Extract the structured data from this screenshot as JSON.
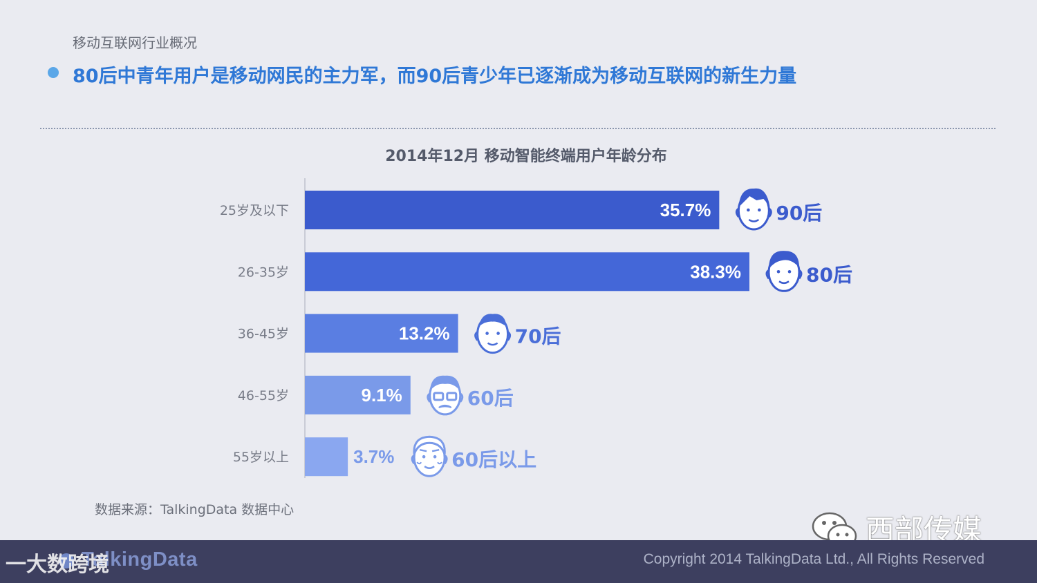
{
  "section_title": "移动互联网行业概况",
  "headline": "80后中青年用户是移动网民的主力军，而90后青少年已逐渐成为移动互联网的新生力量",
  "chart_data": {
    "type": "bar",
    "orientation": "horizontal",
    "title": "2014年12月 移动智能终端用户年龄分布",
    "categories": [
      "25岁及以下",
      "26-35岁",
      "36-45岁",
      "46-55岁",
      "55岁以上"
    ],
    "values": [
      35.7,
      38.3,
      13.2,
      9.1,
      3.7
    ],
    "value_labels": [
      "35.7%",
      "38.3%",
      "13.2%",
      "9.1%",
      "3.7%"
    ],
    "generation_labels": [
      "90后",
      "80后",
      "70后",
      "60后",
      "60后以上"
    ],
    "icons": [
      "young-man-face-icon",
      "man-face-icon",
      "middle-aged-man-face-icon",
      "glasses-mustache-man-face-icon",
      "elderly-man-face-icon"
    ],
    "bar_colors": [
      "#3b5bcd",
      "#4467d8",
      "#5a7ee2",
      "#7a9ae9",
      "#8aa7f0"
    ],
    "label_colors": [
      "#3b5bcd",
      "#3b5bcd",
      "#4a6ed8",
      "#7a9ae9",
      "#7a9ae9"
    ],
    "xlim": [
      0,
      40
    ],
    "grid": false
  },
  "source": "数据来源：TalkingData 数据中心",
  "footer": {
    "brand": "TalkingData",
    "copyright": "Copyright 2014 TalkingData Ltd., All Rights Reserved"
  },
  "watermarks": {
    "left": "一大数跨境",
    "right": "西部传媒"
  }
}
